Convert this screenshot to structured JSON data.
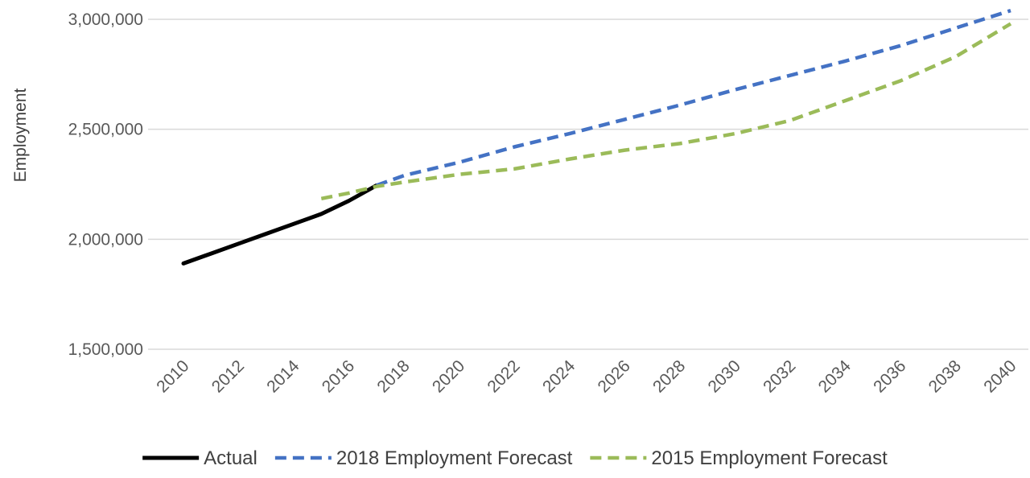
{
  "chart_data": {
    "type": "line",
    "title": "",
    "xlabel": "",
    "ylabel": "Employment",
    "x_ticks": [
      "2010",
      "2012",
      "2014",
      "2016",
      "2018",
      "2020",
      "2022",
      "2024",
      "2026",
      "2028",
      "2030",
      "2032",
      "2034",
      "2036",
      "2038",
      "2040"
    ],
    "y_ticks": [
      "1,500,000",
      "2,000,000",
      "2,500,000",
      "3,000,000"
    ],
    "xlim": [
      2010,
      2040
    ],
    "ylim": [
      1500000,
      3000000
    ],
    "grid": true,
    "legend_position": "bottom",
    "series": [
      {
        "name": "Actual",
        "color": "#000000",
        "style": "solid",
        "x": [
          2010,
          2011,
          2012,
          2013,
          2014,
          2015,
          2016,
          2017
        ],
        "y": [
          1890000,
          1935000,
          1980000,
          2025000,
          2070000,
          2115000,
          2175000,
          2245000
        ]
      },
      {
        "name": "2018 Employment Forecast",
        "color": "#4472C4",
        "style": "dashed",
        "x": [
          2017,
          2018,
          2020,
          2022,
          2024,
          2026,
          2028,
          2030,
          2032,
          2034,
          2036,
          2038,
          2040
        ],
        "y": [
          2245000,
          2290000,
          2350000,
          2420000,
          2480000,
          2545000,
          2610000,
          2680000,
          2745000,
          2810000,
          2880000,
          2960000,
          3040000
        ]
      },
      {
        "name": "2015 Employment Forecast",
        "color": "#9BBB59",
        "style": "dashed",
        "x": [
          2015,
          2016,
          2017,
          2018,
          2020,
          2022,
          2024,
          2026,
          2028,
          2030,
          2032,
          2034,
          2036,
          2038,
          2040
        ],
        "y": [
          2185000,
          2210000,
          2240000,
          2260000,
          2295000,
          2320000,
          2365000,
          2405000,
          2435000,
          2480000,
          2540000,
          2630000,
          2720000,
          2830000,
          2980000
        ]
      }
    ]
  }
}
